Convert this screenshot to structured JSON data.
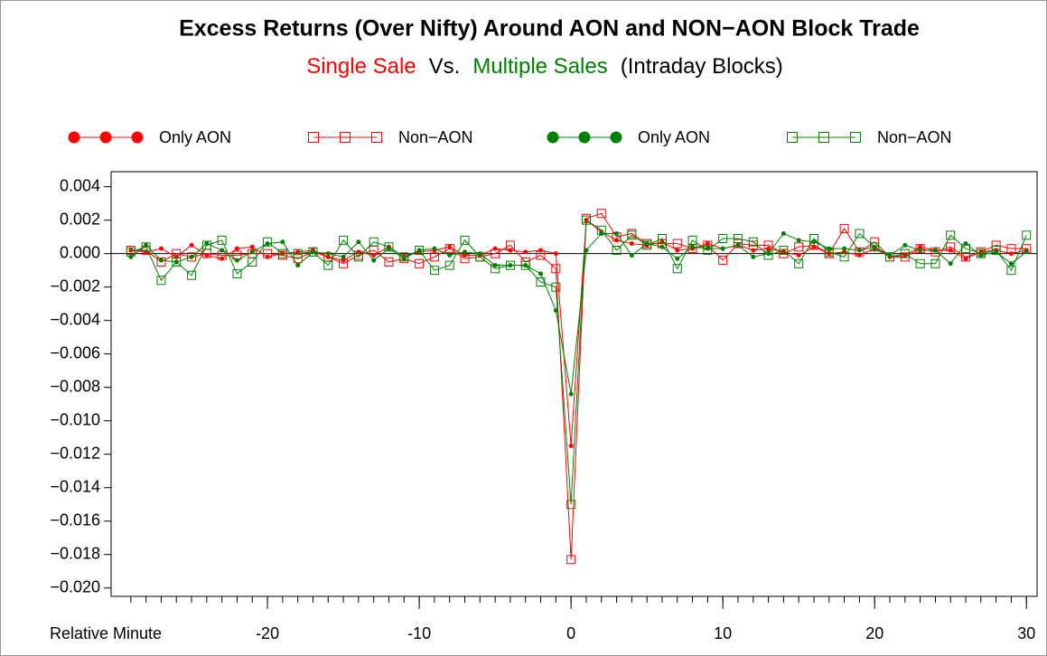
{
  "chart_data": {
    "type": "line",
    "title": "Excess Returns (Over Nifty) Around AON and NON−AON Block Trade",
    "subtitle": [
      {
        "text": "Single Sale",
        "color": "#ff0000"
      },
      {
        "text": "Vs.",
        "color": "#000000"
      },
      {
        "text": "Multiple Sales",
        "color": "#008000"
      },
      {
        "text": "(Intraday Blocks)",
        "color": "#000000"
      }
    ],
    "x_label": "Relative Minute",
    "x": [
      -29,
      -28,
      -27,
      -26,
      -25,
      -24,
      -23,
      -22,
      -21,
      -20,
      -19,
      -18,
      -17,
      -16,
      -15,
      -14,
      -13,
      -12,
      -11,
      -10,
      -9,
      -8,
      -7,
      -6,
      -5,
      -4,
      -3,
      -2,
      -1,
      0,
      1,
      2,
      3,
      4,
      5,
      6,
      7,
      8,
      9,
      10,
      11,
      12,
      13,
      14,
      15,
      16,
      17,
      18,
      19,
      20,
      21,
      22,
      23,
      24,
      25,
      26,
      27,
      28,
      29,
      30
    ],
    "series": [
      {
        "name": "Only AON",
        "color": "#ff0000",
        "marker": "dot",
        "values": [
          0.0002,
          0.0001,
          0.0003,
          -0.0002,
          0.0005,
          -0.0001,
          -0.0003,
          0.0003,
          0.0004,
          -0.0002,
          0.0,
          0.0001,
          0.0002,
          -0.0002,
          -0.0004,
          0.0001,
          -0.0001,
          0.0004,
          -0.0002,
          0.0001,
          0.0002,
          0.0004,
          -0.0001,
          -0.0001,
          0.0003,
          0.0002,
          0.0001,
          0.0002,
          0.0,
          -0.0115,
          0.002,
          0.0013,
          0.0008,
          0.0006,
          0.0005,
          0.0007,
          0.0002,
          0.0003,
          0.0006,
          0.0003,
          0.0005,
          0.0002,
          0.0003,
          0.0001,
          -0.0001,
          0.0004,
          0.0,
          0.0001,
          -0.0001,
          0.0003,
          -0.0002,
          -0.0001,
          0.0004,
          0.0002,
          0.0002,
          -0.0003,
          0.0001,
          0.0002,
          0.0,
          0.0002
        ]
      },
      {
        "name": "Non−AON",
        "color": "#ff0000",
        "marker": "square",
        "values": [
          0.0002,
          0.0002,
          -0.0005,
          0.0,
          -0.0002,
          0.0,
          -0.0001,
          -0.0001,
          0.0,
          0.0,
          -0.0001,
          -0.0003,
          0.0001,
          -0.0002,
          -0.0006,
          -0.0001,
          0.0002,
          -0.0005,
          -0.0003,
          -0.0006,
          -0.0002,
          0.0003,
          -0.0003,
          -0.0002,
          0.0,
          0.0005,
          -0.0005,
          -0.0001,
          -0.0009,
          -0.0183,
          0.0021,
          0.0024,
          0.001,
          0.0012,
          0.0006,
          0.0006,
          0.0006,
          0.0003,
          0.0005,
          -0.0004,
          0.0006,
          0.0005,
          0.0005,
          0.0,
          0.0004,
          0.0005,
          0.0,
          0.0015,
          0.0001,
          0.0007,
          -0.0002,
          -0.0002,
          0.0003,
          0.0001,
          0.0004,
          -0.0002,
          0.0001,
          0.0005,
          0.0003,
          0.0003
        ]
      },
      {
        "name": "Only AON",
        "color": "#008000",
        "marker": "dot",
        "values": [
          -0.0002,
          0.0005,
          -0.0004,
          -0.0005,
          -0.0002,
          0.0006,
          0.0002,
          -0.0004,
          0.0001,
          0.0006,
          0.0007,
          -0.0007,
          0.0001,
          0.0,
          -0.0002,
          0.0007,
          -0.0004,
          0.0003,
          -0.0003,
          0.0002,
          0.0003,
          -0.0001,
          0.0001,
          0.0,
          -0.0007,
          -0.0007,
          -0.0007,
          -0.0012,
          -0.0034,
          -0.0084,
          0.0002,
          0.0012,
          0.0012,
          -0.0001,
          0.0006,
          0.0004,
          -0.0003,
          0.0004,
          0.0003,
          0.0003,
          0.0005,
          -0.0002,
          0.0,
          0.0012,
          0.0008,
          0.0007,
          0.0003,
          0.0003,
          0.0002,
          0.0004,
          -0.0001,
          0.0005,
          0.0002,
          0.0002,
          -0.0006,
          0.0006,
          -0.0001,
          0.0001,
          -0.0006,
          0.0001
        ]
      },
      {
        "name": "Non−AON",
        "color": "#008000",
        "marker": "square",
        "values": [
          0.0001,
          0.0004,
          -0.0016,
          -0.0005,
          -0.0013,
          0.0005,
          0.0008,
          -0.0012,
          -0.0005,
          0.0007,
          0.0,
          0.0,
          0.0001,
          -0.0007,
          0.0008,
          -0.0002,
          0.0007,
          0.0004,
          -0.0002,
          0.0002,
          -0.001,
          -0.0007,
          0.0008,
          -0.0002,
          -0.0009,
          -0.0007,
          -0.0007,
          -0.0017,
          -0.002,
          -0.015,
          0.002,
          0.0014,
          0.0002,
          0.0011,
          0.0005,
          0.0009,
          -0.0009,
          0.0008,
          0.0002,
          0.0009,
          0.0009,
          0.0007,
          -0.0001,
          0.0002,
          -0.0006,
          0.0009,
          0.0001,
          -0.0002,
          0.0012,
          0.0004,
          -0.0002,
          0.0,
          -0.0006,
          -0.0006,
          0.0011,
          0.0003,
          0.0,
          0.0002,
          -0.001,
          0.0011
        ]
      }
    ],
    "xlim": [
      -30.3,
      30.7
    ],
    "xticks": [
      -20,
      -10,
      0,
      10,
      20,
      30
    ],
    "ylim": [
      -0.0205,
      0.0049
    ],
    "yticks": [
      {
        "value": 0.004,
        "label": "0.004"
      },
      {
        "value": 0.002,
        "label": "0.002"
      },
      {
        "value": 0,
        "label": "0.000"
      },
      {
        "value": -0.002,
        "label": "−0.002"
      },
      {
        "value": -0.004,
        "label": "−0.004"
      },
      {
        "value": -0.006,
        "label": "−0.006"
      },
      {
        "value": -0.008,
        "label": "−0.008"
      },
      {
        "value": -0.01,
        "label": "−0.010"
      },
      {
        "value": -0.012,
        "label": "−0.012"
      },
      {
        "value": -0.014,
        "label": "−0.014"
      },
      {
        "value": -0.016,
        "label": "−0.016"
      },
      {
        "value": -0.018,
        "label": "−0.018"
      },
      {
        "value": -0.02,
        "label": "−0.020"
      }
    ],
    "reference_line": 0,
    "grid": false
  }
}
